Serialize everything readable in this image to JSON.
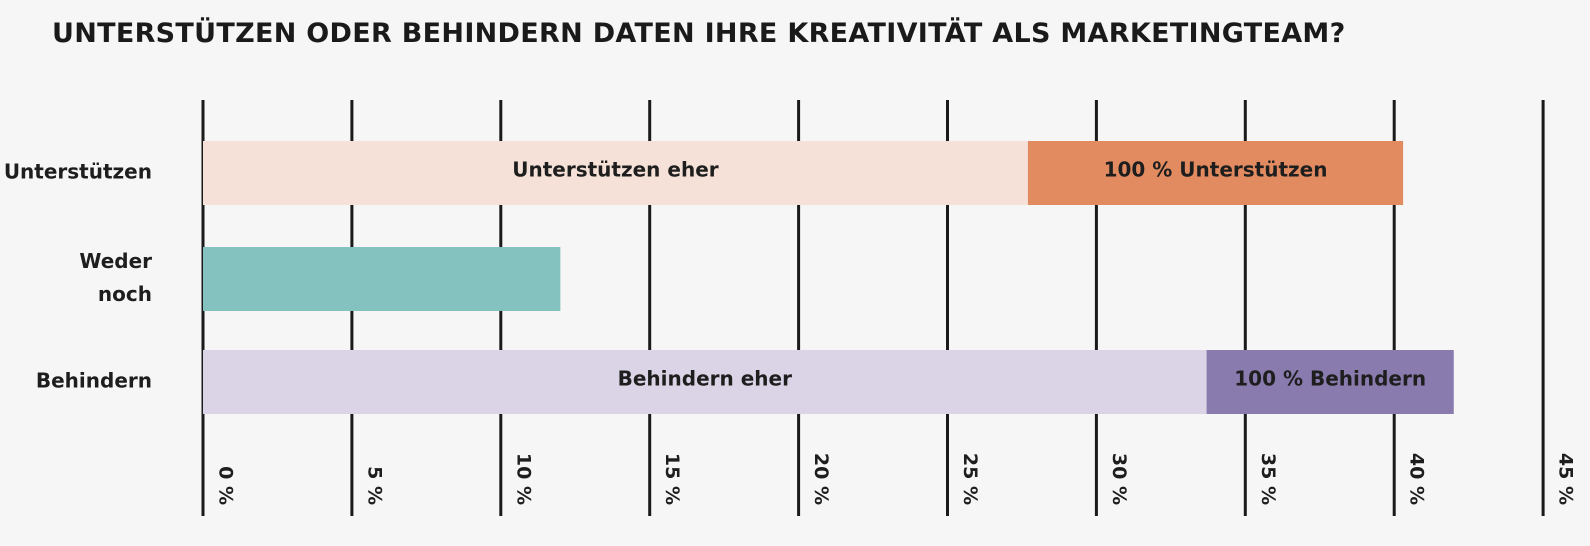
{
  "chart_data": {
    "type": "bar",
    "orientation": "horizontal",
    "stacked": true,
    "title": "UNTERSTÜTZEN ODER BEHINDERN DATEN IHRE KREATIVITÄT ALS MARKETINGTEAM?",
    "xlabel": "",
    "ylabel": "",
    "xlim": [
      0,
      45
    ],
    "xticks": [
      0,
      5,
      10,
      15,
      20,
      25,
      30,
      35,
      40,
      45
    ],
    "tick_suffix": " %",
    "grid": true,
    "categories": [
      {
        "label_lines": [
          "Unterstützen"
        ],
        "segments": [
          {
            "label": "Unterstützen eher",
            "value": 27.7,
            "color": "#f5e1d7"
          },
          {
            "label": "100 % Unterstützen",
            "value": 12.6,
            "color": "#e38b60"
          }
        ]
      },
      {
        "label_lines": [
          "Weder",
          "noch"
        ],
        "segments": [
          {
            "label": "",
            "value": 12.0,
            "color": "#84c2c0"
          }
        ]
      },
      {
        "label_lines": [
          "Behindern"
        ],
        "segments": [
          {
            "label": "Behindern eher",
            "value": 33.7,
            "color": "#dbd3e6"
          },
          {
            "label": "100 % Behindern",
            "value": 8.3,
            "color": "#897bad"
          }
        ]
      }
    ]
  }
}
